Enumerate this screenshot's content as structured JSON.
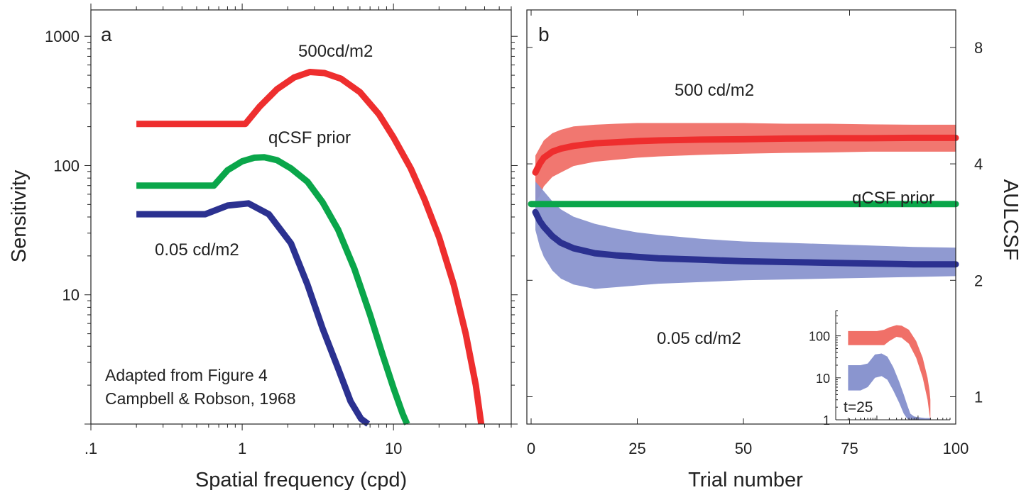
{
  "colors": {
    "red": "#ee2e2e",
    "green": "#0aa64a",
    "blue": "#2b3190",
    "red_band": "#f07068",
    "blue_band": "#8a95cf"
  },
  "chart_data": [
    {
      "type": "line",
      "panel_label": "a",
      "xlabel": "Spatial frequency (cpd)",
      "ylabel": "Sensitivity",
      "x_scale": "log",
      "y_scale": "log",
      "xlim": [
        0.1,
        60
      ],
      "ylim": [
        1,
        1600
      ],
      "x_ticks": [
        {
          "v": 0.1,
          "label": ".1"
        },
        {
          "v": 1,
          "label": "1"
        },
        {
          "v": 10,
          "label": "10"
        }
      ],
      "y_ticks": [
        {
          "v": 10,
          "label": "10"
        },
        {
          "v": 100,
          "label": "100"
        },
        {
          "v": 1000,
          "label": "1000"
        }
      ],
      "series": [
        {
          "name": "500 cd/m2",
          "label_text": "500cd/m2",
          "color_key": "red",
          "x": [
            0.2,
            0.4,
            0.6,
            0.8,
            1.0,
            1.05,
            1.3,
            1.7,
            2.2,
            2.8,
            3.5,
            4.5,
            6,
            8,
            10,
            13,
            16,
            20,
            25,
            30,
            35,
            38
          ],
          "y": [
            210,
            210,
            210,
            210,
            210,
            210,
            285,
            390,
            480,
            530,
            520,
            470,
            370,
            250,
            165,
            95,
            55,
            28,
            12,
            5,
            2,
            1
          ]
        },
        {
          "name": "qCSF prior",
          "label_text": "qCSF prior",
          "color_key": "green",
          "x": [
            0.2,
            0.4,
            0.62,
            0.65,
            0.8,
            1.0,
            1.2,
            1.4,
            1.7,
            2.1,
            2.7,
            3.4,
            4.3,
            5.5,
            7,
            8.5,
            10,
            11.5,
            12.3
          ],
          "y": [
            70,
            70,
            70,
            70,
            92,
            108,
            115,
            116,
            110,
            95,
            75,
            52,
            32,
            16,
            7,
            3.4,
            1.9,
            1.2,
            1.0
          ]
        },
        {
          "name": "0.05 cd/m2",
          "label_text": "0.05 cd/m2",
          "color_key": "blue",
          "x": [
            0.2,
            0.4,
            0.57,
            0.8,
            1.1,
            1.5,
            2.1,
            2.7,
            3.4,
            4.3,
            5.2,
            6.1,
            6.8
          ],
          "y": [
            42,
            42,
            42,
            49,
            51,
            42,
            25,
            12,
            5.5,
            2.7,
            1.5,
            1.1,
            1.0
          ]
        }
      ],
      "annotation": [
        "Adapted from Figure 4",
        "Campbell & Robson, 1968"
      ]
    },
    {
      "type": "area",
      "panel_label": "b",
      "xlabel": "Trial number",
      "ylabel": "AULCSF",
      "xlim": [
        0,
        100
      ],
      "y_scale": "log",
      "ylim": [
        0.85,
        10
      ],
      "x_ticks": [
        {
          "v": 0,
          "label": "0"
        },
        {
          "v": 25,
          "label": "25"
        },
        {
          "v": 50,
          "label": "50"
        },
        {
          "v": 75,
          "label": "75"
        },
        {
          "v": 100,
          "label": "100"
        }
      ],
      "y_ticks": [
        {
          "v": 1,
          "label": "1"
        },
        {
          "v": 2,
          "label": "2"
        },
        {
          "v": 4,
          "label": "4"
        },
        {
          "v": 8,
          "label": "8"
        }
      ],
      "series": [
        {
          "name": "500 cd/m2",
          "label_text": "500 cd/m2",
          "color_key": "red",
          "x": [
            1,
            2,
            3,
            5,
            7,
            10,
            15,
            20,
            25,
            30,
            40,
            50,
            60,
            70,
            80,
            90,
            100
          ],
          "y": [
            3.8,
            4.0,
            4.15,
            4.3,
            4.38,
            4.45,
            4.52,
            4.55,
            4.58,
            4.6,
            4.62,
            4.63,
            4.65,
            4.66,
            4.66,
            4.67,
            4.67
          ],
          "lower": [
            3.2,
            3.3,
            3.5,
            3.7,
            3.8,
            3.95,
            4.05,
            4.1,
            4.15,
            4.18,
            4.22,
            4.25,
            4.27,
            4.28,
            4.3,
            4.3,
            4.3
          ],
          "upper": [
            4.2,
            4.4,
            4.6,
            4.8,
            4.9,
            5.0,
            5.05,
            5.08,
            5.1,
            5.1,
            5.1,
            5.1,
            5.08,
            5.08,
            5.06,
            5.05,
            5.05
          ]
        },
        {
          "name": "qCSF prior",
          "label_text": "qCSF prior",
          "color_key": "green",
          "x": [
            0,
            100
          ],
          "y": [
            3.15,
            3.15
          ]
        },
        {
          "name": "0.05 cd/m2",
          "label_text": "0.05 cd/m2",
          "color_key": "blue",
          "x": [
            1,
            2,
            3,
            5,
            7,
            10,
            15,
            20,
            25,
            30,
            40,
            50,
            60,
            70,
            80,
            90,
            100
          ],
          "y": [
            3.0,
            2.85,
            2.75,
            2.6,
            2.5,
            2.42,
            2.35,
            2.32,
            2.3,
            2.28,
            2.26,
            2.24,
            2.23,
            2.22,
            2.21,
            2.2,
            2.2
          ],
          "lower": [
            2.7,
            2.45,
            2.3,
            2.12,
            2.02,
            1.95,
            1.9,
            1.92,
            1.94,
            1.96,
            1.98,
            2.0,
            2.01,
            2.02,
            2.03,
            2.04,
            2.05
          ],
          "upper": [
            3.6,
            3.5,
            3.4,
            3.2,
            3.05,
            2.92,
            2.8,
            2.72,
            2.66,
            2.62,
            2.56,
            2.52,
            2.5,
            2.48,
            2.46,
            2.44,
            2.43
          ]
        }
      ],
      "inset": {
        "label": "t=25",
        "x_scale": "log",
        "y_scale": "log",
        "xlim": [
          0.1,
          60
        ],
        "ylim": [
          1,
          400
        ],
        "y_ticks": [
          {
            "v": 1,
            "label": "1"
          },
          {
            "v": 10,
            "label": "10"
          },
          {
            "v": 100,
            "label": "100"
          }
        ],
        "bands": [
          {
            "color_key": "red_band",
            "x": [
              0.2,
              0.5,
              1.0,
              1.5,
              2.0,
              3.0,
              4.0,
              6.0,
              9.0,
              13.0,
              17.0,
              19.0,
              20.0
            ],
            "lower": [
              60,
              60,
              60,
              60,
              75,
              95,
              90,
              65,
              30,
              10,
              3,
              1.3,
              1.0
            ],
            "upper": [
              130,
              130,
              130,
              140,
              160,
              180,
              175,
              140,
              75,
              30,
              10,
              5,
              3
            ]
          },
          {
            "color_key": "blue_band",
            "x": [
              0.2,
              0.4,
              0.6,
              0.9,
              1.3,
              1.8,
              2.5,
              3.5,
              4.5,
              5.5,
              6.5,
              8.0,
              10.0,
              15.0,
              20.0
            ],
            "lower": [
              5,
              5,
              6,
              10,
              11,
              9,
              5,
              2.5,
              1.4,
              1.05,
              1.0,
              1.0,
              1.0,
              1.0,
              1.0
            ],
            "upper": [
              20,
              20,
              22,
              36,
              38,
              32,
              18,
              8,
              4,
              2.2,
              1.4,
              1.2,
              1.15,
              1.1,
              1.1
            ]
          }
        ]
      }
    }
  ]
}
